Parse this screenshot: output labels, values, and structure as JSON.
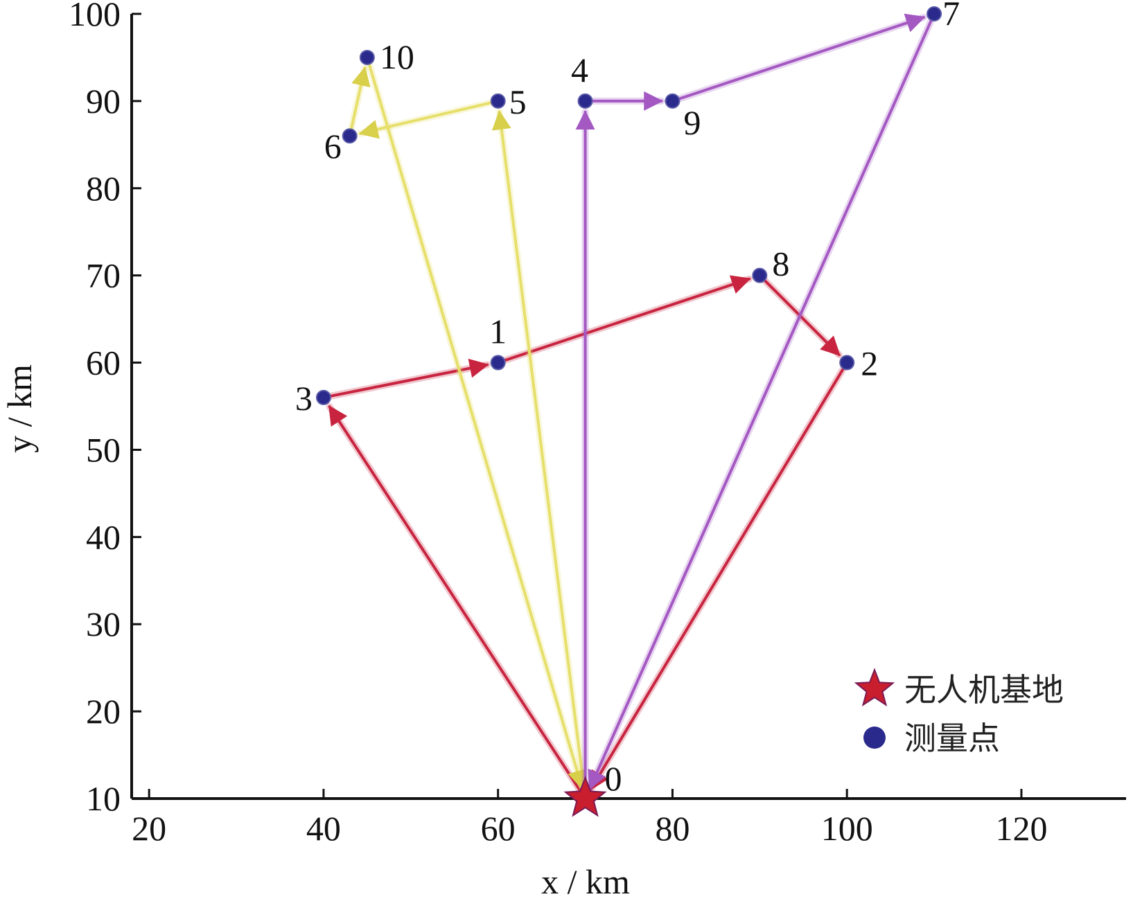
{
  "chart_data": {
    "type": "scatter",
    "xlabel": "x / km",
    "ylabel": "y / km",
    "xlim": [
      18,
      132
    ],
    "ylim": [
      10,
      100
    ],
    "x_ticks": [
      20,
      40,
      60,
      80,
      100,
      120
    ],
    "y_ticks": [
      10,
      20,
      30,
      40,
      50,
      60,
      70,
      80,
      90,
      100
    ],
    "base": {
      "label": "0",
      "x": 70,
      "y": 10,
      "color": "#c81e2d"
    },
    "points": [
      {
        "label": "1",
        "x": 60,
        "y": 60
      },
      {
        "label": "2",
        "x": 100,
        "y": 60
      },
      {
        "label": "3",
        "x": 40,
        "y": 56
      },
      {
        "label": "4",
        "x": 70,
        "y": 90
      },
      {
        "label": "5",
        "x": 60,
        "y": 90
      },
      {
        "label": "6",
        "x": 43,
        "y": 86
      },
      {
        "label": "7",
        "x": 110,
        "y": 100
      },
      {
        "label": "8",
        "x": 90,
        "y": 70
      },
      {
        "label": "9",
        "x": 80,
        "y": 90
      },
      {
        "label": "10",
        "x": 45,
        "y": 95
      }
    ],
    "routes": [
      {
        "color": "#c8243f",
        "sequence": [
          "0",
          "3",
          "1",
          "8",
          "2",
          "0"
        ]
      },
      {
        "color": "#e6df6a",
        "sequence": [
          "0",
          "5",
          "6",
          "10",
          "0"
        ]
      },
      {
        "color": "#a458c2",
        "sequence": [
          "0",
          "4",
          "9",
          "7",
          "0"
        ]
      }
    ],
    "point_color": "#2a2a8c",
    "legend": {
      "position": "bottom-right",
      "items": [
        {
          "symbol": "star",
          "label": "无人机基地"
        },
        {
          "symbol": "circle",
          "label": "测量点"
        }
      ]
    }
  }
}
